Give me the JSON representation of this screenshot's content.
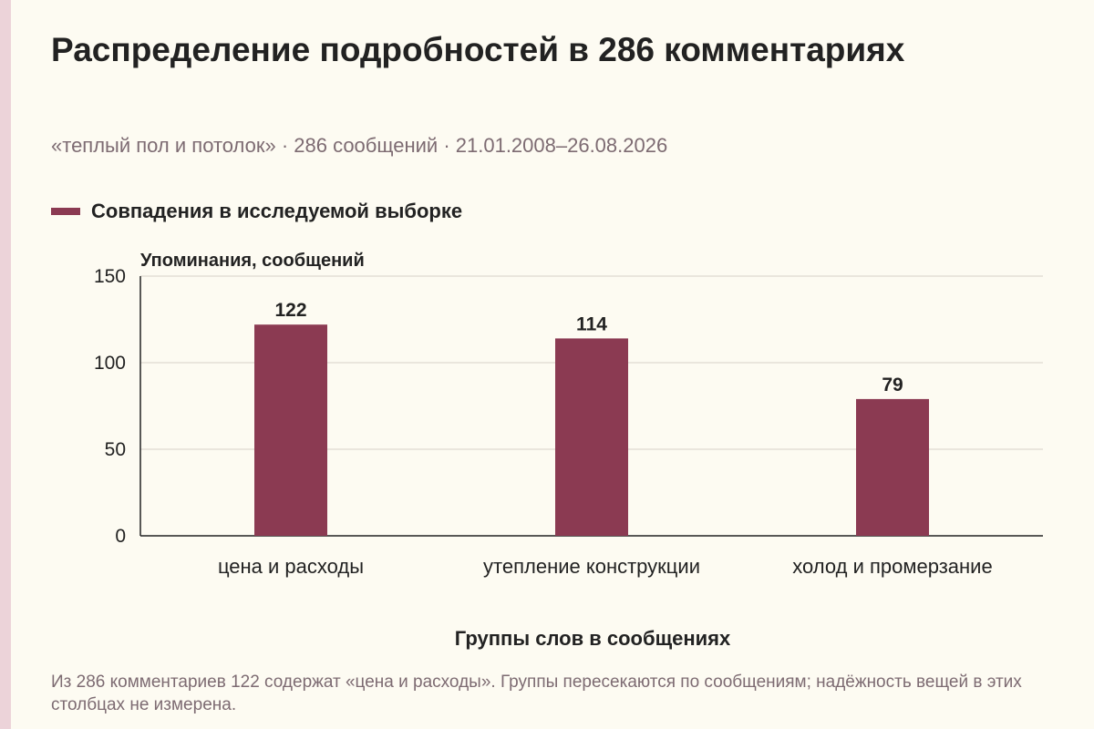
{
  "title": "Распределение подробностей в 286 комментариях",
  "subtitle": "«теплый пол и потолок» · 286 сообщений · 21.01.2008–26.08.2026",
  "legend": {
    "label": "Совпадения в исследуемой выборке",
    "color": "#8b3a52"
  },
  "chart_data": {
    "type": "bar",
    "categories": [
      "цена и расходы",
      "утепление конструкции",
      "холод и промерзание"
    ],
    "series": [
      {
        "name": "Совпадения в исследуемой выборке",
        "values": [
          122,
          114,
          79
        ],
        "color": "#8b3a52"
      }
    ],
    "data_labels": [
      "122",
      "114",
      "79"
    ],
    "ylabel": "Упоминания, сообщений",
    "xlabel": "Группы слов в сообщениях",
    "ylim": [
      0,
      150
    ],
    "yticks": [
      0,
      50,
      100,
      150
    ],
    "grid": true
  },
  "footnote": "Из 286 комментариев 122 содержат «цена и расходы». Группы пересекаются по сообщениям; надёжность вещей в этих столбцах не измерена."
}
